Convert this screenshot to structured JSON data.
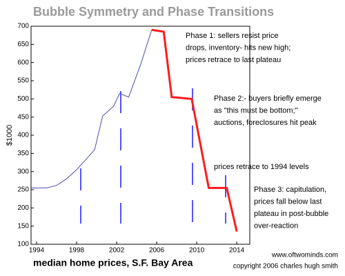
{
  "chart_data": {
    "type": "line",
    "title": "Bubble Symmetry and Phase Transitions",
    "ylabel": "$1000",
    "xlabel": "median home prices, S.F. Bay Area",
    "xlim": [
      1993.45,
      2015.3
    ],
    "xticks": [
      1994,
      1998,
      2002,
      2006,
      2010,
      2014
    ],
    "ylim": [
      100,
      700
    ],
    "yticks": [
      100,
      150,
      200,
      250,
      300,
      350,
      400,
      450,
      500,
      550,
      600,
      650,
      700
    ],
    "series": [
      {
        "color": "#4b4bb4",
        "x": [
          1993.5,
          1995,
          1996,
          1997,
          1998,
          1999.8,
          2000.6,
          2001.7,
          2002.3,
          2003.2,
          2004.4,
          2005.5
        ],
        "values": [
          255,
          255,
          262,
          280,
          305,
          360,
          453,
          480,
          515,
          505,
          595,
          690
        ]
      },
      {
        "color": "#ff1a1a",
        "x": [
          2005.5,
          2006.7,
          2007.5,
          2009.5,
          2011.2,
          2013,
          2014
        ],
        "values": [
          690,
          685,
          505,
          500,
          255,
          255,
          135
        ]
      }
    ],
    "annotations": [
      {
        "lines": [
          "Phase 1: sellers  resist price",
          "drops, inventory- hits new high;",
          "prices retrace to  last plateau"
        ]
      },
      {
        "lines": [
          "Phase 2:- buyers briefly emerge",
          "  as  \"this  must be bottom;\"",
          "auctions, foreclosures hit peak"
        ]
      },
      {
        "lines": [
          "prices retrace to 1994 levels"
        ]
      },
      {
        "lines": [
          "Phase 3: capitulation,",
          "prices fall below last",
          "plateau in post-bubble",
          "over-reaction"
        ]
      }
    ],
    "credits": [
      "www.oftwominds.com",
      "copyright 2006 charles hugh smith"
    ]
  }
}
